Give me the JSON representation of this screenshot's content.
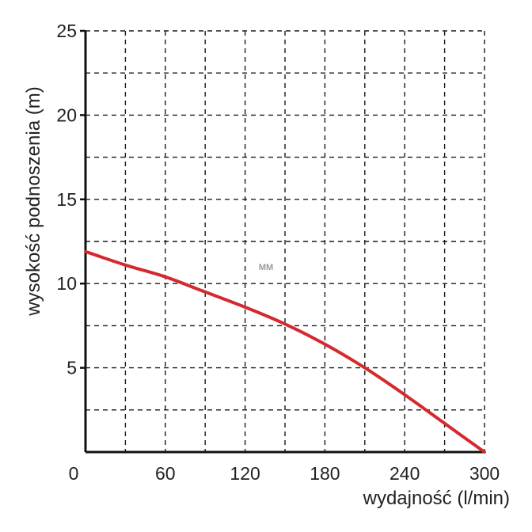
{
  "chart_data": {
    "type": "line",
    "title": "",
    "xlabel": "wydajność (l/min)",
    "ylabel": "wysokość podnoszenia (m)",
    "xlim": [
      0,
      300
    ],
    "ylim": [
      0,
      25
    ],
    "x_ticks": [
      "0",
      "60",
      "120",
      "180",
      "240",
      "300"
    ],
    "y_ticks": [
      "5",
      "10",
      "15",
      "20",
      "25"
    ],
    "grid": true,
    "grid_style": "dashed",
    "series": [
      {
        "color": "#d42a2f",
        "x": [
          0,
          30,
          60,
          90,
          120,
          150,
          180,
          210,
          240,
          270,
          300
        ],
        "y": [
          11.9,
          11.1,
          10.4,
          9.5,
          8.6,
          7.6,
          6.4,
          5.0,
          3.4,
          1.7,
          0.0
        ]
      }
    ],
    "watermark": "MM"
  }
}
